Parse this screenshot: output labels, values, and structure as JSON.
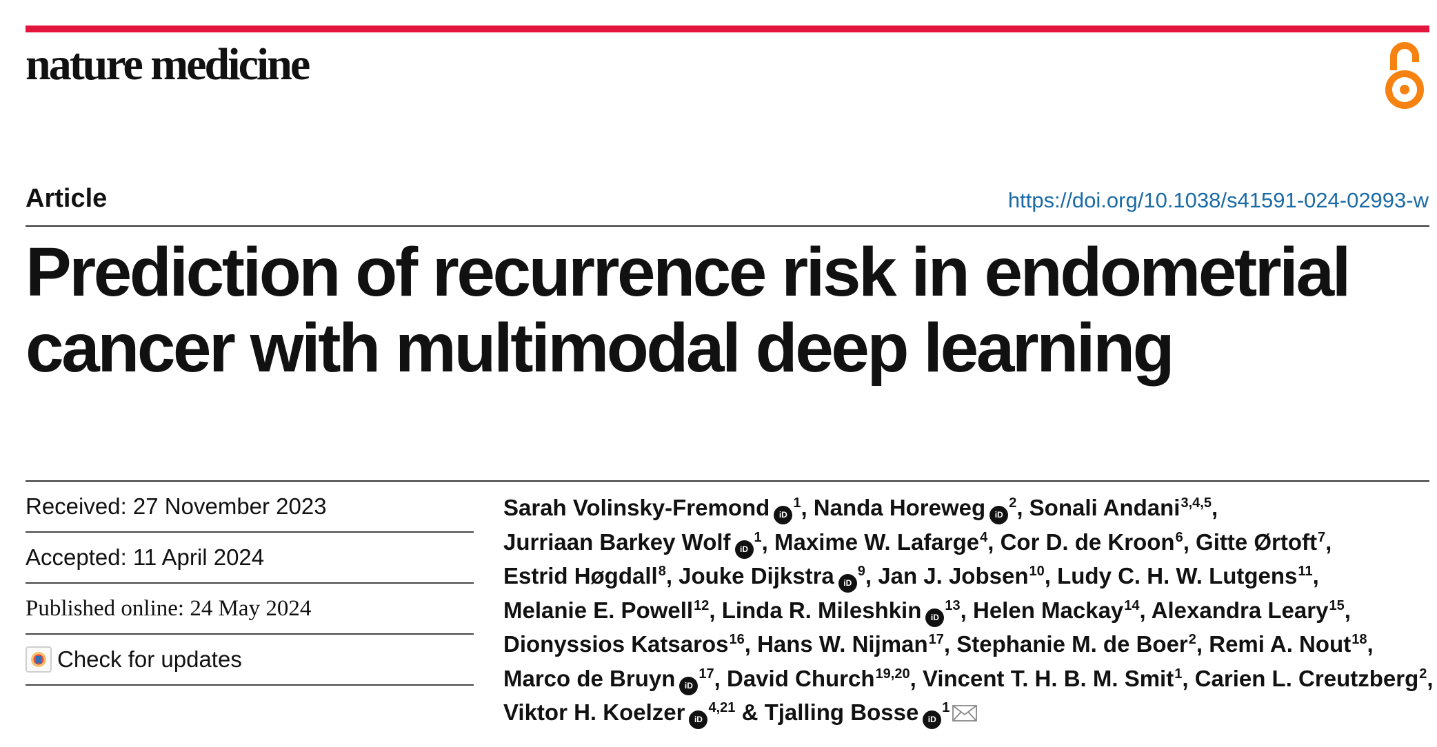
{
  "journal": {
    "name": "nature medicine",
    "accent_color": "#e3173e",
    "open_access_icon": "open-access-lock-icon",
    "open_access_color": "#f68212"
  },
  "article": {
    "type": "Article",
    "doi": "https://doi.org/10.1038/s41591-024-02993-w",
    "title": "Prediction of recurrence risk in endometrial cancer with multimodal deep learning"
  },
  "meta": {
    "received": "Received: 27 November 2023",
    "accepted": "Accepted: 11 April 2024",
    "published": "Published online: 24 May 2024",
    "check_updates": "Check for updates"
  },
  "authors": [
    {
      "name": "Sarah Volinsky-Fremond",
      "orcid": true,
      "aff": "1"
    },
    {
      "name": "Nanda Horeweg",
      "orcid": true,
      "aff": "2"
    },
    {
      "name": "Sonali Andani",
      "orcid": false,
      "aff": "3,4,5"
    },
    {
      "name": "Jurriaan Barkey Wolf",
      "orcid": true,
      "aff": "1"
    },
    {
      "name": "Maxime W. Lafarge",
      "orcid": false,
      "aff": "4"
    },
    {
      "name": "Cor D. de Kroon",
      "orcid": false,
      "aff": "6"
    },
    {
      "name": "Gitte Ørtoft",
      "orcid": false,
      "aff": "7"
    },
    {
      "name": "Estrid Høgdall",
      "orcid": false,
      "aff": "8"
    },
    {
      "name": "Jouke Dijkstra",
      "orcid": true,
      "aff": "9"
    },
    {
      "name": "Jan J. Jobsen",
      "orcid": false,
      "aff": "10"
    },
    {
      "name": "Ludy C. H. W. Lutgens",
      "orcid": false,
      "aff": "11"
    },
    {
      "name": "Melanie E. Powell",
      "orcid": false,
      "aff": "12"
    },
    {
      "name": "Linda R. Mileshkin",
      "orcid": true,
      "aff": "13"
    },
    {
      "name": "Helen Mackay",
      "orcid": false,
      "aff": "14"
    },
    {
      "name": "Alexandra Leary",
      "orcid": false,
      "aff": "15"
    },
    {
      "name": "Dionyssios Katsaros",
      "orcid": false,
      "aff": "16"
    },
    {
      "name": "Hans W. Nijman",
      "orcid": false,
      "aff": "17"
    },
    {
      "name": "Stephanie M. de Boer",
      "orcid": false,
      "aff": "2"
    },
    {
      "name": "Remi A. Nout",
      "orcid": false,
      "aff": "18"
    },
    {
      "name": "Marco de Bruyn",
      "orcid": true,
      "aff": "17"
    },
    {
      "name": "David Church",
      "orcid": false,
      "aff": "19,20"
    },
    {
      "name": "Vincent T. H. B. M. Smit",
      "orcid": false,
      "aff": "1"
    },
    {
      "name": "Carien L. Creutzberg",
      "orcid": false,
      "aff": "2"
    },
    {
      "name": "Viktor H. Koelzer",
      "orcid": true,
      "aff": "4,21"
    },
    {
      "name": "Tjalling Bosse",
      "orcid": true,
      "aff": "1",
      "corresponding": true
    }
  ],
  "orcid_label": "iD",
  "author_separator": ", ",
  "last_author_separator": " & "
}
